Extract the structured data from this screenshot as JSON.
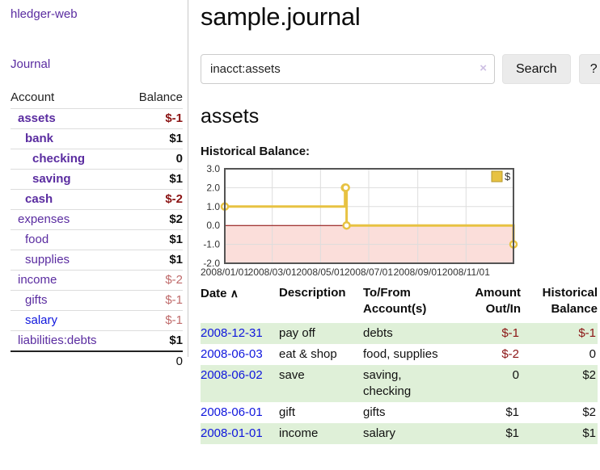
{
  "sidebar": {
    "app_title": "hledger-web",
    "journal_link": "Journal",
    "accounts_table": {
      "headers": {
        "account": "Account",
        "balance": "Balance"
      },
      "rows": [
        {
          "name": "assets",
          "balance": "$-1"
        },
        {
          "name": "bank",
          "balance": "$1"
        },
        {
          "name": "checking",
          "balance": "0"
        },
        {
          "name": "saving",
          "balance": "$1"
        },
        {
          "name": "cash",
          "balance": "$-2"
        },
        {
          "name": "expenses",
          "balance": "$2"
        },
        {
          "name": "food",
          "balance": "$1"
        },
        {
          "name": "supplies",
          "balance": "$1"
        },
        {
          "name": "income",
          "balance": "$-2"
        },
        {
          "name": "gifts",
          "balance": "$-1"
        },
        {
          "name": "salary",
          "balance": "$-1"
        },
        {
          "name": "liabilities:debts",
          "balance": "$1"
        }
      ],
      "total": "0"
    }
  },
  "header": {
    "title": "sample.journal"
  },
  "search": {
    "value": "inacct:assets",
    "clear_icon": "×",
    "button_label": "Search",
    "help_label": "?"
  },
  "account_page": {
    "title": "assets",
    "chart_label": "Historical Balance:"
  },
  "chart_data": {
    "type": "line",
    "step": true,
    "title": "Historical Balance",
    "series": [
      {
        "name": "$",
        "color": "#e7c242",
        "points": [
          [
            "2008-01-01",
            1
          ],
          [
            "2008-06-01",
            2
          ],
          [
            "2008-06-02",
            2
          ],
          [
            "2008-06-03",
            0
          ],
          [
            "2008-12-31",
            -1
          ]
        ]
      }
    ],
    "ylim": [
      -2,
      3
    ],
    "xrange": [
      "2008-01-01",
      "2008-12-31"
    ],
    "yticks": [
      3,
      2,
      1,
      0,
      -1,
      -2
    ],
    "ytick_labels": [
      "3.0",
      "2.0",
      "1.0",
      "0.0",
      "-1.0",
      "-2.0"
    ],
    "xticks": [
      "2008-01-01",
      "2008-03-01",
      "2008-05-01",
      "2008-07-01",
      "2008-09-01",
      "2008-11-01"
    ],
    "xtick_labels": [
      "2008/01/01",
      "2008/03/01",
      "2008/05/01",
      "2008/07/01",
      "2008/09/01",
      "2008/11/01"
    ],
    "grid": true,
    "negative_region_color": "#fbdeda",
    "zero_line_color": "#8b0000",
    "legend": {
      "position": "top-right",
      "label": "$"
    }
  },
  "register": {
    "headers": {
      "date": "Date",
      "sort_icon": "∧",
      "description": "Description",
      "tofrom_line1": "To/From",
      "tofrom_line2": "Account(s)",
      "amount_line1": "Amount",
      "amount_line2": "Out/In",
      "hist_line1": "Historical",
      "hist_line2": "Balance"
    },
    "rows": [
      {
        "date": "2008-12-31",
        "description": "pay off",
        "accounts": "debts",
        "amount": "$-1",
        "balance": "$-1"
      },
      {
        "date": "2008-06-03",
        "description": "eat & shop",
        "accounts": "food, supplies",
        "amount": "$-2",
        "balance": "0"
      },
      {
        "date": "2008-06-02",
        "description": "save",
        "accounts": "saving, checking",
        "amount": "0",
        "balance": "$2"
      },
      {
        "date": "2008-06-01",
        "description": "gift",
        "accounts": "gifts",
        "amount": "$1",
        "balance": "$2"
      },
      {
        "date": "2008-01-01",
        "description": "income",
        "accounts": "salary",
        "amount": "$1",
        "balance": "$1"
      }
    ]
  }
}
